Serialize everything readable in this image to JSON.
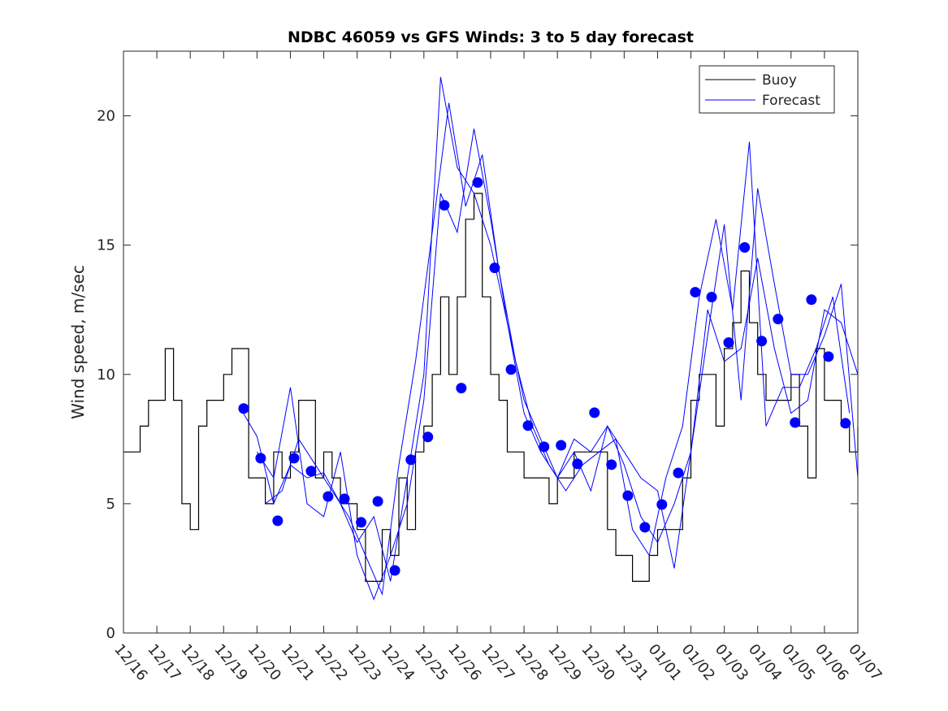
{
  "chart_data": {
    "type": "line",
    "title": "NDBC 46059 vs GFS Winds: 3 to 5 day forecast",
    "xlabel": "",
    "ylabel": "Wind speed, m/sec",
    "ylim": [
      0,
      22.5
    ],
    "xlim_days": [
      0,
      22
    ],
    "yticks": [
      0,
      5,
      10,
      15,
      20
    ],
    "xtick_labels": [
      "12/16",
      "12/17",
      "12/18",
      "12/19",
      "12/20",
      "12/21",
      "12/22",
      "12/23",
      "12/24",
      "12/25",
      "12/26",
      "12/27",
      "12/28",
      "12/29",
      "12/30",
      "12/31",
      "01/01",
      "01/02",
      "01/03",
      "01/04",
      "01/05",
      "01/06",
      "01/07"
    ],
    "grid": false,
    "legend": {
      "placement": "top-right",
      "entries": [
        "Buoy",
        "Forecast"
      ]
    },
    "colors": {
      "buoy": "#000000",
      "forecast": "#0000ff",
      "markers": "#0000ff"
    },
    "buoy": {
      "name": "Buoy",
      "x_start_day": 0,
      "x_step_day": 0.25,
      "values": [
        7,
        7,
        8,
        9,
        9,
        11,
        9,
        5,
        4,
        8,
        9,
        9,
        10,
        11,
        11,
        6,
        6,
        5,
        7,
        6,
        7,
        9,
        9,
        6,
        7,
        6,
        5,
        5,
        4,
        2,
        2,
        4,
        3,
        6,
        4,
        7,
        8,
        10,
        13,
        10,
        13,
        16,
        17,
        13,
        10,
        9,
        7,
        7,
        6,
        6,
        6,
        5,
        6,
        6,
        7,
        7,
        7,
        7,
        4,
        3,
        3,
        2,
        2,
        3,
        4,
        4,
        4,
        6,
        9,
        10,
        10,
        8,
        11,
        12,
        14,
        12,
        10,
        9,
        9,
        9,
        10,
        8,
        6,
        11,
        9,
        9,
        8,
        7,
        8
      ]
    },
    "forecast_series": [
      {
        "name": "Forecast",
        "x_start_day": 3.5,
        "x_step_day": 0.5,
        "values": [
          8.7,
          7.6,
          5.0,
          6.5,
          6.0,
          6.2,
          5.0,
          3.5,
          4.5,
          2.0,
          6.0,
          10.0,
          21.5,
          18.0,
          17.0,
          15.0,
          12.0,
          9.0,
          7.5,
          6.0,
          7.5,
          7.0,
          8.0,
          6.5,
          4.5,
          3.5,
          5.0,
          7.0,
          12.5,
          10.5,
          11.0,
          14.5,
          11.0,
          8.5,
          9.0,
          12.5,
          12.0,
          10.0
        ]
      },
      {
        "name": "Forecast",
        "x_start_day": 4.0,
        "x_step_day": 0.5,
        "values": [
          7.0,
          6.0,
          9.5,
          5.0,
          4.5,
          7.0,
          3.0,
          1.3,
          3.0,
          5.0,
          9.0,
          17.0,
          15.5,
          19.5,
          16.0,
          12.0,
          8.5,
          7.0,
          6.0,
          7.0,
          5.5,
          8.0,
          7.0,
          6.0,
          5.5,
          2.5,
          7.0,
          11.5,
          15.8,
          9.0,
          17.2,
          13.5,
          10.0,
          10.0,
          11.5,
          13.5,
          6.0
        ]
      },
      {
        "name": "Forecast",
        "x_start_day": 4.25,
        "x_step_day": 0.5,
        "values": [
          5.0,
          5.5,
          7.5,
          6.5,
          5.5,
          4.5,
          3.0,
          1.5,
          6.5,
          10.5,
          15.5,
          20.5,
          16.5,
          18.5,
          14.0,
          10.5,
          8.0,
          6.5,
          5.5,
          6.5,
          7.0,
          7.5,
          4.0,
          3.0,
          6.0,
          8.0,
          13.0,
          16.0,
          12.5,
          19.0,
          8.0,
          9.5,
          9.5,
          11.0,
          13.0,
          8.5
        ]
      }
    ],
    "forecast_points": {
      "x_days": [
        3.6,
        4.11,
        4.62,
        5.11,
        5.62,
        6.13,
        6.62,
        7.12,
        7.62,
        8.13,
        8.61,
        9.12,
        9.61,
        10.12,
        10.61,
        11.12,
        11.61,
        12.12,
        12.6,
        13.11,
        13.6,
        14.11,
        14.62,
        15.11,
        15.62,
        16.13,
        16.62,
        17.13,
        17.62,
        18.13,
        18.61,
        19.12,
        19.61,
        20.12,
        20.61,
        21.12,
        21.63
      ],
      "values": [
        8.68,
        6.76,
        4.34,
        6.76,
        6.26,
        5.28,
        5.19,
        4.28,
        5.09,
        2.42,
        6.7,
        7.58,
        16.54,
        9.47,
        17.42,
        14.12,
        10.19,
        8.02,
        7.2,
        7.26,
        6.54,
        8.52,
        6.51,
        5.31,
        4.09,
        4.97,
        6.19,
        13.18,
        12.99,
        11.23,
        14.91,
        11.29,
        12.14,
        8.14,
        12.89,
        10.69,
        8.11
      ]
    }
  }
}
